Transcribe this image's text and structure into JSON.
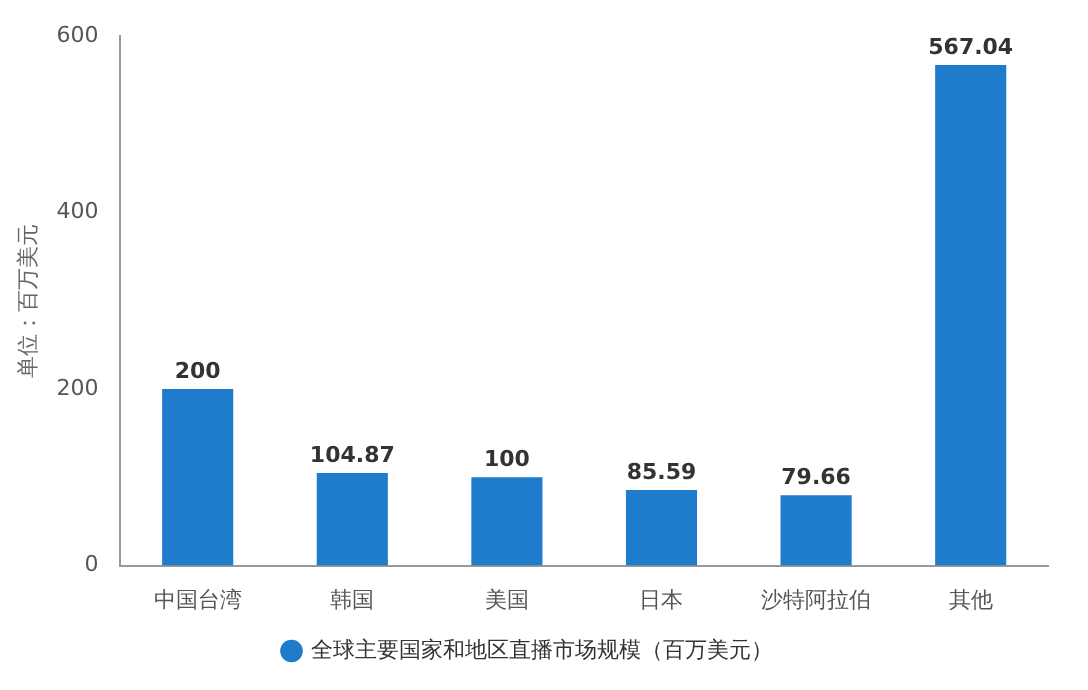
{
  "chart_data": {
    "type": "bar",
    "ylabel": "单位：百万美元",
    "categories": [
      "中国台湾",
      "韩国",
      "美国",
      "日本",
      "沙特阿拉伯",
      "其他"
    ],
    "series": [
      {
        "name": "全球主要国家和地区直播市场规模（百万美元）",
        "color": "#1f7bcb",
        "values": [
          200,
          104.87,
          100,
          85.59,
          79.66,
          567.04
        ]
      }
    ],
    "ylim": [
      0,
      600
    ],
    "yticks": [
      0,
      200,
      400,
      600
    ],
    "grid": false,
    "legend": "bottom",
    "data_labels": true
  }
}
